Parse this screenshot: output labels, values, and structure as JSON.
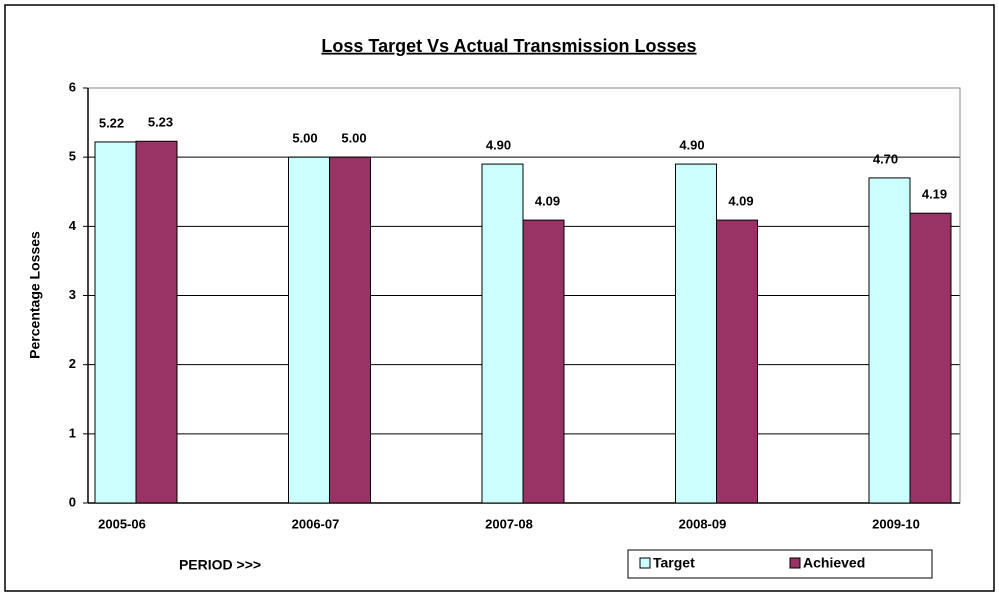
{
  "chart_data": {
    "type": "bar",
    "title": "Loss Target Vs Actual Transmission Losses",
    "x_label": "PERIOD >>>",
    "y_label": "Percentage Losses",
    "categories": [
      "2005-06",
      "2006-07",
      "2007-08",
      "2008-09",
      "2009-10"
    ],
    "series": [
      {
        "name": "Target",
        "color": "#ccffff",
        "values": [
          5.22,
          5.0,
          4.9,
          4.9,
          4.7
        ],
        "value_labels": [
          "5.22",
          "5.00",
          "4.90",
          "4.90",
          "4.70"
        ]
      },
      {
        "name": "Achieved",
        "color": "#993366",
        "values": [
          5.23,
          5.0,
          4.09,
          4.09,
          4.19
        ],
        "value_labels": [
          "5.23",
          "5.00",
          "4.09",
          "4.09",
          "4.19"
        ]
      }
    ],
    "ylim": [
      0,
      6
    ],
    "yticks": [
      0,
      1,
      2,
      3,
      4,
      5,
      6
    ],
    "grid": true,
    "legend": "bottom-right"
  }
}
